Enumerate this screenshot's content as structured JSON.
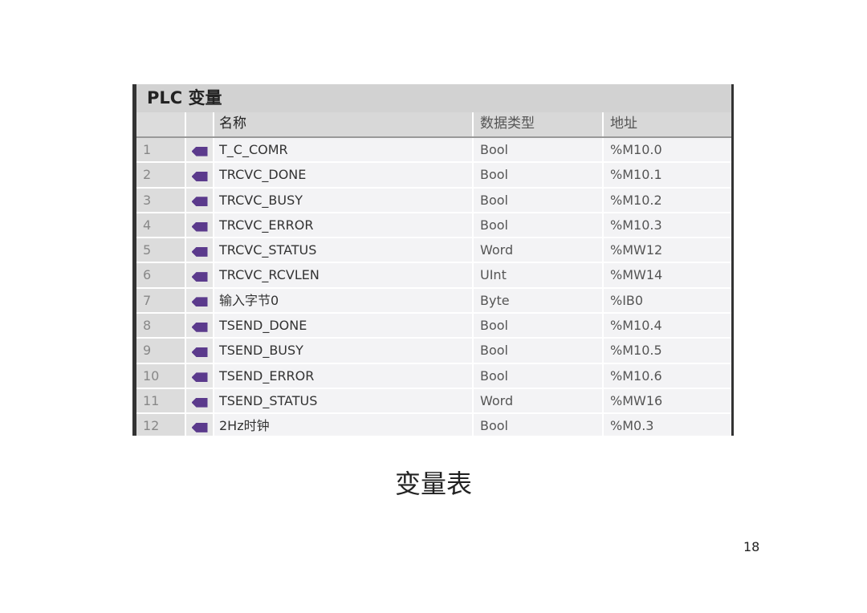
{
  "panel": {
    "title": "PLC 变量",
    "columns": [
      "",
      "",
      "名称",
      "数据类型",
      "地址"
    ],
    "rows": [
      {
        "n": "1",
        "name": "T_C_COMR",
        "type": "Bool",
        "addr": "%M10.0"
      },
      {
        "n": "2",
        "name": "TRCVC_DONE",
        "type": "Bool",
        "addr": "%M10.1"
      },
      {
        "n": "3",
        "name": "TRCVC_BUSY",
        "type": "Bool",
        "addr": "%M10.2"
      },
      {
        "n": "4",
        "name": "TRCVC_ERROR",
        "type": "Bool",
        "addr": "%M10.3"
      },
      {
        "n": "5",
        "name": "TRCVC_STATUS",
        "type": "Word",
        "addr": "%MW12"
      },
      {
        "n": "6",
        "name": "TRCVC_RCVLEN",
        "type": "UInt",
        "addr": "%MW14"
      },
      {
        "n": "7",
        "name": "输入字节0",
        "type": "Byte",
        "addr": "%IB0"
      },
      {
        "n": "8",
        "name": "TSEND_DONE",
        "type": "Bool",
        "addr": "%M10.4"
      },
      {
        "n": "9",
        "name": "TSEND_BUSY",
        "type": "Bool",
        "addr": "%M10.5"
      },
      {
        "n": "10",
        "name": "TSEND_ERROR",
        "type": "Bool",
        "addr": "%M10.6"
      },
      {
        "n": "11",
        "name": "TSEND_STATUS",
        "type": "Word",
        "addr": "%MW16"
      },
      {
        "n": "12",
        "name": "2Hz时钟",
        "type": "Bool",
        "addr": "%M0.3"
      }
    ],
    "icon": "tag-variable-icon",
    "icon_color": "#5b3a8c"
  },
  "caption": "变量表",
  "page_number": "18"
}
